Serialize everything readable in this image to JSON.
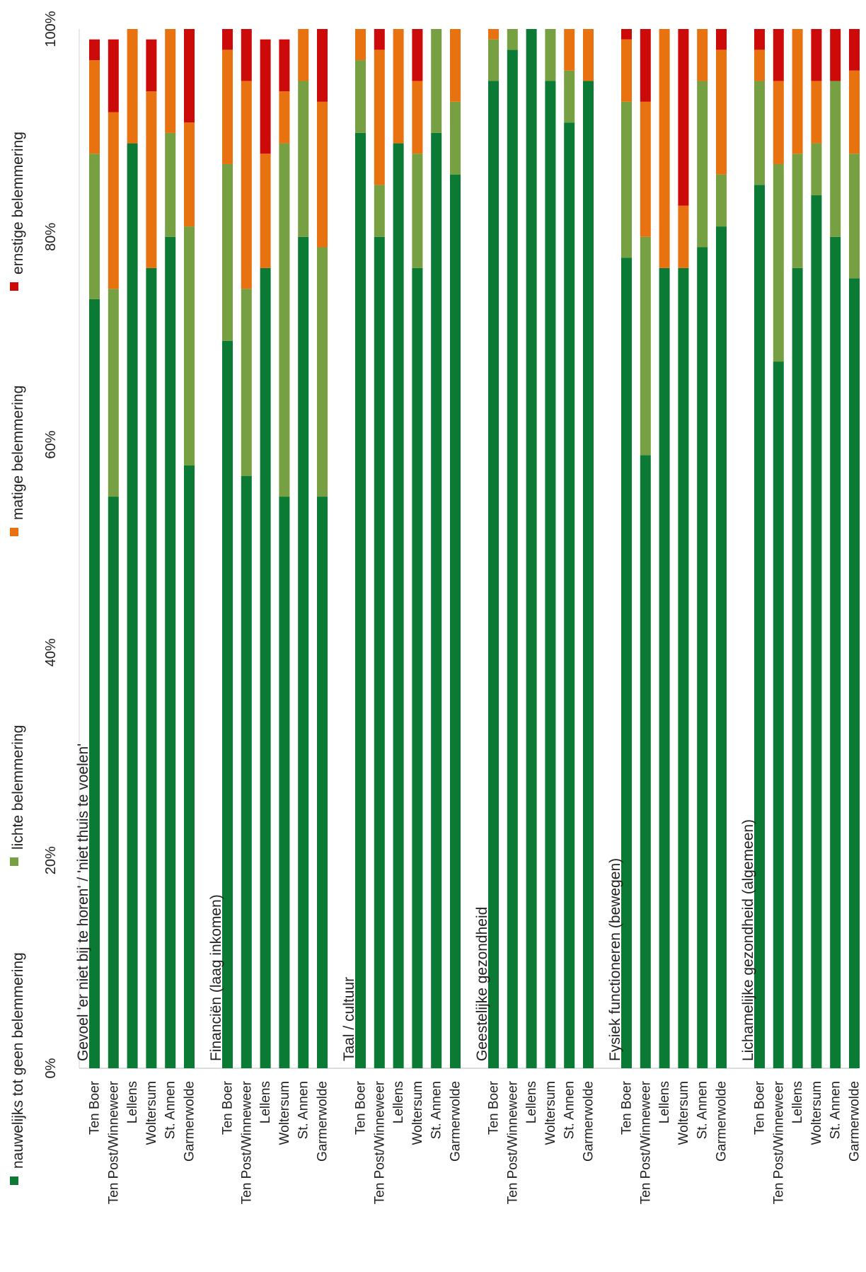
{
  "chart_data": {
    "type": "bar",
    "stacked": true,
    "orientation": "vertical (rendered rotated, value axis along the top)",
    "value_axis": {
      "ticks": [
        "0%",
        "20%",
        "40%",
        "60%",
        "80%",
        "100%"
      ],
      "range": [
        0,
        100
      ],
      "unit": "%"
    },
    "legend_position": "left",
    "series": [
      {
        "name": "nauwelijks tot geen belemmering",
        "color": "#0a7a34"
      },
      {
        "name": "lichte belemmering",
        "color": "#77a043"
      },
      {
        "name": "matige belemmering",
        "color": "#e8720f"
      },
      {
        "name": "ernstige belemmering",
        "color": "#cc0a0a"
      }
    ],
    "groups": [
      {
        "label": "Gevoel 'er niet bij te horen' / 'niet thuis te voelen'",
        "categories": [
          "Ten Boer",
          "Ten Post/Winneweer",
          "Lellens",
          "Woltersum",
          "St. Annen",
          "Garmerwolde"
        ],
        "values": [
          [
            74,
            14,
            9,
            2
          ],
          [
            55,
            20,
            17,
            7
          ],
          [
            89,
            0,
            11,
            0
          ],
          [
            77,
            0,
            17,
            5
          ],
          [
            80,
            10,
            10,
            0
          ],
          [
            58,
            23,
            10,
            9
          ]
        ]
      },
      {
        "label": "Financiën (laag inkomen)",
        "categories": [
          "Ten Boer",
          "Ten Post/Winneweer",
          "Lellens",
          "Woltersum",
          "St. Annen",
          "Garmerwolde"
        ],
        "values": [
          [
            70,
            17,
            11,
            2
          ],
          [
            57,
            18,
            20,
            5
          ],
          [
            77,
            0,
            11,
            11
          ],
          [
            55,
            34,
            5,
            5
          ],
          [
            80,
            15,
            5,
            0
          ],
          [
            55,
            24,
            14,
            7
          ]
        ]
      },
      {
        "label": "Taal / cultuur",
        "categories": [
          "Ten Boer",
          "Ten Post/Winneweer",
          "Lellens",
          "Woltersum",
          "St. Annen",
          "Garmerwolde"
        ],
        "values": [
          [
            90,
            7,
            3,
            0
          ],
          [
            80,
            5,
            13,
            2
          ],
          [
            89,
            0,
            11,
            0
          ],
          [
            77,
            11,
            7,
            5
          ],
          [
            90,
            10,
            0,
            0
          ],
          [
            86,
            7,
            7,
            0
          ]
        ]
      },
      {
        "label": "Geestelijke gezondheid",
        "categories": [
          "Ten Boer",
          "Ten Post/Winneweer",
          "Lellens",
          "Woltersum",
          "St. Annen",
          "Garmerwolde"
        ],
        "values": [
          [
            95,
            4,
            1,
            0
          ],
          [
            98,
            2,
            0,
            0
          ],
          [
            100,
            0,
            0,
            0
          ],
          [
            95,
            5,
            0,
            0
          ],
          [
            91,
            5,
            4,
            0
          ],
          [
            95,
            0,
            5,
            0
          ]
        ]
      },
      {
        "label": "Fysiek functioneren (bewegen)",
        "categories": [
          "Ten Boer",
          "Ten Post/Winneweer",
          "Lellens",
          "Woltersum",
          "St. Annen",
          "Garmerwolde"
        ],
        "values": [
          [
            78,
            15,
            6,
            1
          ],
          [
            59,
            21,
            13,
            7
          ],
          [
            77,
            0,
            23,
            0
          ],
          [
            77,
            0,
            6,
            17
          ],
          [
            79,
            16,
            5,
            0
          ],
          [
            81,
            5,
            12,
            2
          ]
        ]
      },
      {
        "label": "Lichamelijke gezondheid (algemeen)",
        "categories": [
          "Ten Boer",
          "Ten Post/Winneweer",
          "Lellens",
          "Woltersum",
          "St. Annen",
          "Garmerwolde"
        ],
        "values": [
          [
            85,
            10,
            3,
            2
          ],
          [
            68,
            19,
            8,
            5
          ],
          [
            77,
            11,
            12,
            0
          ],
          [
            84,
            5,
            6,
            5
          ],
          [
            80,
            15,
            0,
            5
          ],
          [
            76,
            12,
            8,
            4
          ]
        ]
      }
    ]
  }
}
